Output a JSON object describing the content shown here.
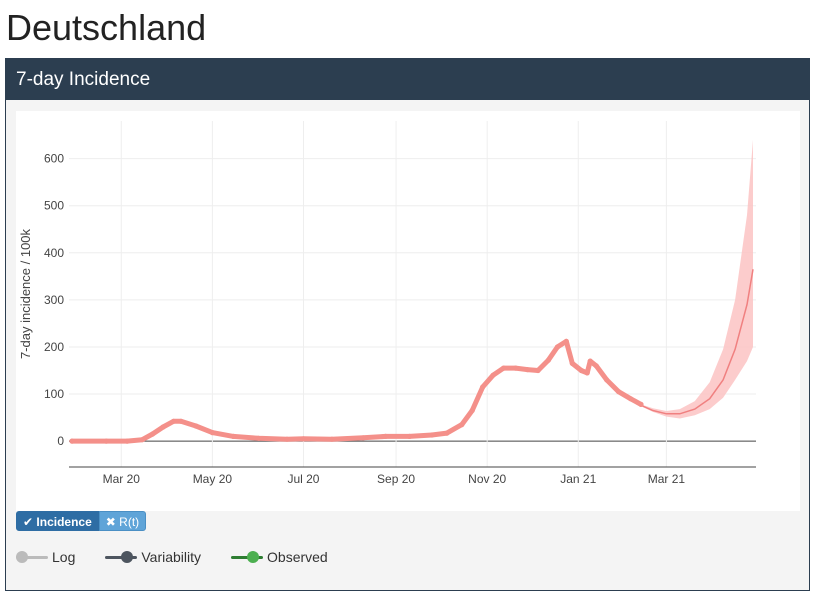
{
  "page_title": "Deutschland",
  "panel": {
    "header": "7-day Incidence",
    "toggles": [
      {
        "label": "Incidence",
        "icon": "check-icon",
        "active": true
      },
      {
        "label": "R(t)",
        "icon": "x-icon",
        "active": false
      }
    ],
    "legend": [
      {
        "label": "Log",
        "color": "#bbbbbb",
        "state": "off"
      },
      {
        "label": "Variability",
        "color": "#4d555f",
        "state": "on"
      },
      {
        "label": "Observed",
        "color": "#4caf50",
        "state": "on"
      }
    ]
  },
  "chart_data": {
    "type": "line",
    "ylabel": "7-day incidence / 100k",
    "xlabel": "",
    "x_ticks": [
      "Mar 20",
      "May 20",
      "Jul 20",
      "Sep 20",
      "Nov 20",
      "Jan 21",
      "Mar 21"
    ],
    "x_tick_dates": [
      "2020-03-01",
      "2020-05-01",
      "2020-07-01",
      "2020-09-01",
      "2020-11-01",
      "2021-01-01",
      "2021-03-01"
    ],
    "xlim": [
      "2020-01-26",
      "2021-04-30"
    ],
    "y_ticks": [
      0,
      100,
      200,
      300,
      400,
      500,
      600
    ],
    "ylim": [
      -55,
      680
    ],
    "grid": true,
    "colors": {
      "observed": "#f4908a",
      "forecast": "#f08080",
      "band": "#fbc3c3"
    },
    "series": [
      {
        "name": "Observed",
        "points": [
          [
            "2020-01-28",
            0
          ],
          [
            "2020-02-20",
            0
          ],
          [
            "2020-03-05",
            0
          ],
          [
            "2020-03-15",
            3
          ],
          [
            "2020-03-22",
            15
          ],
          [
            "2020-03-29",
            30
          ],
          [
            "2020-04-05",
            42
          ],
          [
            "2020-04-10",
            42
          ],
          [
            "2020-04-20",
            32
          ],
          [
            "2020-05-01",
            18
          ],
          [
            "2020-05-15",
            10
          ],
          [
            "2020-06-01",
            6
          ],
          [
            "2020-06-20",
            4
          ],
          [
            "2020-07-01",
            5
          ],
          [
            "2020-07-20",
            4
          ],
          [
            "2020-08-10",
            7
          ],
          [
            "2020-08-25",
            10
          ],
          [
            "2020-09-10",
            10
          ],
          [
            "2020-09-25",
            13
          ],
          [
            "2020-10-05",
            17
          ],
          [
            "2020-10-15",
            35
          ],
          [
            "2020-10-22",
            65
          ],
          [
            "2020-10-29",
            115
          ],
          [
            "2020-11-05",
            140
          ],
          [
            "2020-11-12",
            155
          ],
          [
            "2020-11-20",
            155
          ],
          [
            "2020-11-28",
            152
          ],
          [
            "2020-12-05",
            150
          ],
          [
            "2020-12-12",
            172
          ],
          [
            "2020-12-18",
            200
          ],
          [
            "2020-12-24",
            212
          ],
          [
            "2020-12-28",
            165
          ],
          [
            "2021-01-03",
            150
          ],
          [
            "2021-01-07",
            145
          ],
          [
            "2021-01-09",
            170
          ],
          [
            "2021-01-13",
            160
          ],
          [
            "2021-01-20",
            130
          ],
          [
            "2021-01-28",
            105
          ],
          [
            "2021-02-05",
            90
          ],
          [
            "2021-02-12",
            78
          ]
        ]
      },
      {
        "name": "Forecast",
        "points": [
          [
            "2021-02-12",
            76
          ],
          [
            "2021-02-20",
            65
          ],
          [
            "2021-03-01",
            58
          ],
          [
            "2021-03-10",
            58
          ],
          [
            "2021-03-20",
            68
          ],
          [
            "2021-03-30",
            90
          ],
          [
            "2021-04-08",
            130
          ],
          [
            "2021-04-16",
            195
          ],
          [
            "2021-04-24",
            290
          ],
          [
            "2021-04-28",
            365
          ]
        ],
        "band_low": [
          [
            "2021-02-12",
            74
          ],
          [
            "2021-02-20",
            62
          ],
          [
            "2021-03-01",
            52
          ],
          [
            "2021-03-10",
            48
          ],
          [
            "2021-03-20",
            55
          ],
          [
            "2021-03-30",
            68
          ],
          [
            "2021-04-08",
            92
          ],
          [
            "2021-04-16",
            130
          ],
          [
            "2021-04-24",
            170
          ],
          [
            "2021-04-28",
            200
          ]
        ],
        "band_high": [
          [
            "2021-02-12",
            78
          ],
          [
            "2021-02-20",
            70
          ],
          [
            "2021-03-01",
            64
          ],
          [
            "2021-03-10",
            68
          ],
          [
            "2021-03-20",
            85
          ],
          [
            "2021-03-30",
            125
          ],
          [
            "2021-04-08",
            195
          ],
          [
            "2021-04-16",
            300
          ],
          [
            "2021-04-24",
            480
          ],
          [
            "2021-04-28",
            640
          ]
        ]
      }
    ]
  }
}
